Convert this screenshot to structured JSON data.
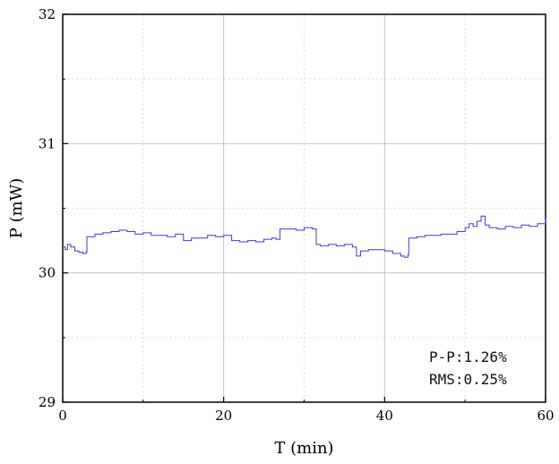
{
  "chart_data": {
    "type": "line",
    "xlabel": "T (min)",
    "ylabel": "P (mW)",
    "xlim": [
      0,
      60
    ],
    "ylim": [
      29,
      32
    ],
    "x_ticks": [
      0,
      20,
      40,
      60
    ],
    "y_ticks": [
      29,
      30,
      31,
      32
    ],
    "grid": true,
    "series_color": "#3a3ad8",
    "annotations": [
      "P-P:1.26%",
      "RMS:0.25%"
    ],
    "series": [
      {
        "x": [
          0,
          0.3,
          0.6,
          1.0,
          1.5,
          2.0,
          2.5,
          2.9,
          3.0,
          4.0,
          5.0,
          6.0,
          7.0,
          8.0,
          9.0,
          10.0,
          11.0,
          12.0,
          13.0,
          14.0,
          15.0,
          16.0,
          17.0,
          18.0,
          19.0,
          20.0,
          21.0,
          22.0,
          23.0,
          24.0,
          25.0,
          26.0,
          26.5,
          27.0,
          28.0,
          29.0,
          30.0,
          31.0,
          31.5,
          32.0,
          33.0,
          34.0,
          35.0,
          36.0,
          36.5,
          37.0,
          38.0,
          39.0,
          40.0,
          41.0,
          42.0,
          42.5,
          42.9,
          43.0,
          44.0,
          45.0,
          46.0,
          47.0,
          48.0,
          49.0,
          50.0,
          50.5,
          51.0,
          51.5,
          52.0,
          52.5,
          53.0,
          54.0,
          55.0,
          56.0,
          57.0,
          58.0,
          59.0,
          60.0
        ],
        "y": [
          30.2,
          30.18,
          30.22,
          30.2,
          30.17,
          30.16,
          30.15,
          30.16,
          30.28,
          30.3,
          30.31,
          30.32,
          30.33,
          30.32,
          30.3,
          30.31,
          30.29,
          30.29,
          30.28,
          30.3,
          30.25,
          30.27,
          30.27,
          30.29,
          30.28,
          30.29,
          30.25,
          30.24,
          30.25,
          30.24,
          30.26,
          30.27,
          30.26,
          30.34,
          30.34,
          30.33,
          30.35,
          30.34,
          30.22,
          30.21,
          30.22,
          30.21,
          30.22,
          30.2,
          30.13,
          30.17,
          30.18,
          30.18,
          30.17,
          30.15,
          30.13,
          30.12,
          30.14,
          30.27,
          30.28,
          30.29,
          30.29,
          30.3,
          30.3,
          30.32,
          30.35,
          30.38,
          30.36,
          30.4,
          30.44,
          30.37,
          30.35,
          30.34,
          30.36,
          30.35,
          30.37,
          30.36,
          30.38,
          30.42
        ]
      }
    ]
  }
}
